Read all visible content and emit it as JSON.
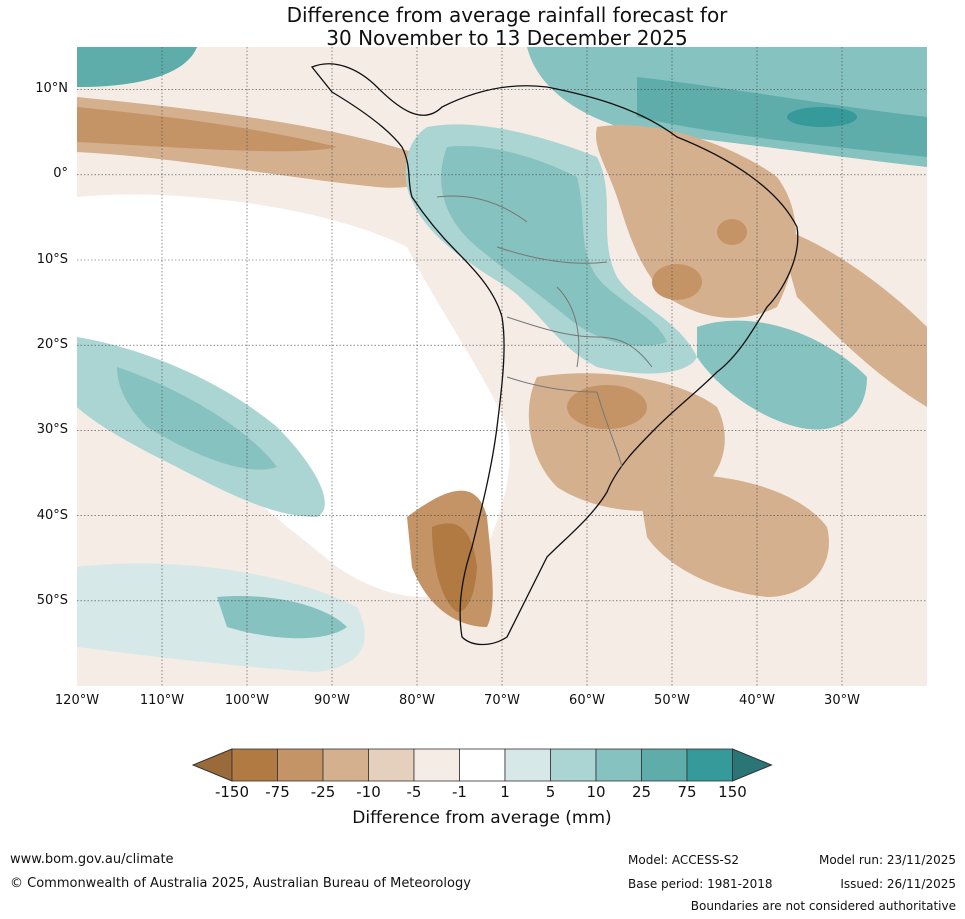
{
  "title": {
    "line1": "Difference from average rainfall forecast for",
    "line2": "30 November to 13 December 2025"
  },
  "map": {
    "region": "South America",
    "lat_labels": [
      "10°N",
      "0°",
      "10°S",
      "20°S",
      "30°S",
      "40°S",
      "50°S"
    ],
    "lon_labels": [
      "120°W",
      "110°W",
      "100°W",
      "90°W",
      "80°W",
      "70°W",
      "60°W",
      "50°W",
      "40°W",
      "30°W"
    ],
    "extent": {
      "lon_min": -120,
      "lon_max": -20,
      "lat_min": -60,
      "lat_max": 15
    }
  },
  "colorbar": {
    "label": "Difference from average (mm)",
    "ticks": [
      "-150",
      "-75",
      "-25",
      "-10",
      "-5",
      "-1",
      "1",
      "5",
      "10",
      "25",
      "75",
      "150"
    ],
    "colors": [
      "#9b6a3a",
      "#b07a42",
      "#c49467",
      "#d4b08f",
      "#e5d0bd",
      "#f5ece6",
      "#ffffff",
      "#d6e9e8",
      "#abd5d3",
      "#86c2bf",
      "#5fadab",
      "#36999a",
      "#2a7575"
    ]
  },
  "footer": {
    "website": "www.bom.gov.au/climate",
    "copyright": "© Commonwealth of Australia 2025, Australian Bureau of Meteorology",
    "model": "Model: ACCESS-S2",
    "base_period": "Base period: 1981-2018",
    "model_run": "Model run: 23/11/2025",
    "issued": "Issued: 26/11/2025",
    "disclaimer": "Boundaries are not considered authoritative"
  }
}
